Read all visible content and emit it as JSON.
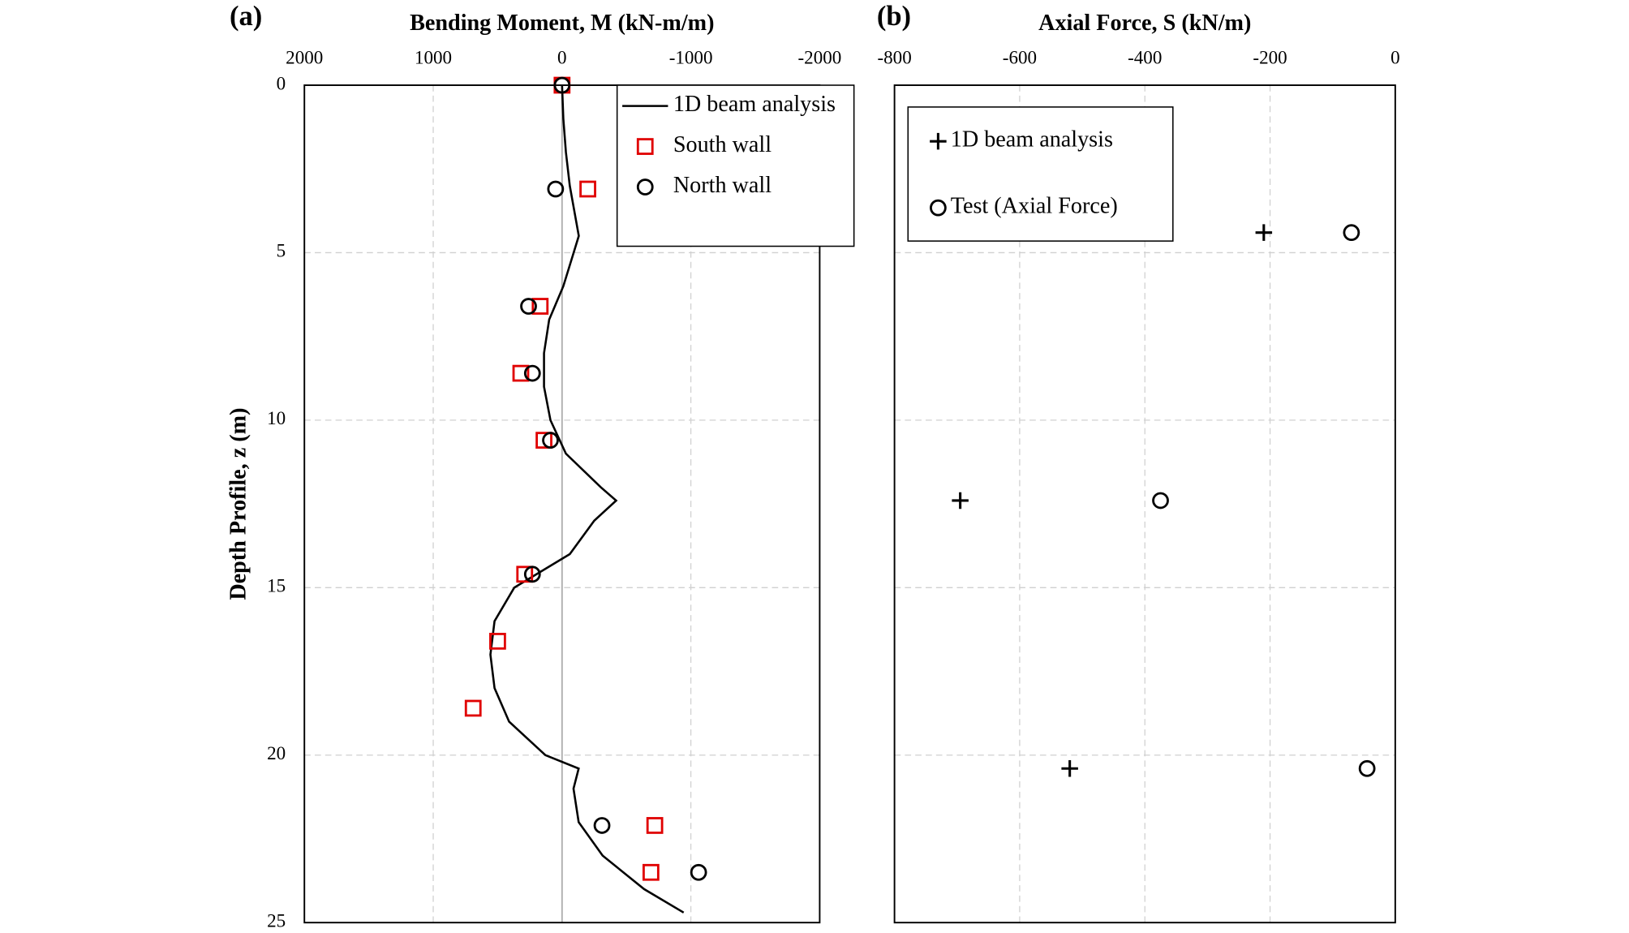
{
  "chart_data": [
    {
      "type": "scatter",
      "panel_label": "(a)",
      "title": "Bending Moment, M (kN-m/m)",
      "y_label": "Depth Profile, z (m)",
      "xlim": [
        2000,
        -2000
      ],
      "xticks": [
        2000,
        1000,
        0,
        -1000,
        -2000
      ],
      "ylim": [
        0,
        25
      ],
      "yticks": [
        0,
        5,
        10,
        15,
        20,
        25
      ],
      "y_inverted": true,
      "grid": true,
      "zero_line": true,
      "legend": "upper right",
      "ytick_labels": true,
      "series": [
        {
          "name": "1D beam analysis",
          "marker": "line",
          "color": "#000000",
          "x": [
            0,
            -10,
            -30,
            -60,
            -130,
            -90,
            -10,
            100,
            140,
            140,
            90,
            -30,
            -300,
            -420,
            -250,
            -60,
            371,
            524,
            556,
            524,
            411,
            129,
            -129,
            -89,
            -129,
            -315,
            -637,
            -944
          ],
          "y": [
            0,
            1,
            2,
            3,
            4.5,
            5,
            6,
            7,
            8,
            9,
            10,
            11,
            12,
            12.4,
            13,
            14,
            15,
            16,
            17,
            18,
            19,
            20,
            20.4,
            21,
            22,
            23,
            24,
            24.7
          ]
        },
        {
          "name": "South wall",
          "marker": "square",
          "color": "#e00000",
          "x": [
            0,
            -200,
            170,
            320,
            140,
            290,
            500,
            690,
            -720,
            -690
          ],
          "y": [
            0,
            3.1,
            6.6,
            8.6,
            10.6,
            14.6,
            16.6,
            18.6,
            22.1,
            23.5
          ]
        },
        {
          "name": "North wall",
          "marker": "circle",
          "color": "#000000",
          "x": [
            0,
            50,
            260,
            230,
            90,
            230,
            -310,
            -1060
          ],
          "y": [
            0,
            3.1,
            6.6,
            8.6,
            10.6,
            14.6,
            22.1,
            23.5
          ]
        }
      ]
    },
    {
      "type": "scatter",
      "panel_label": "(b)",
      "title": "Axial Force, S (kN/m)",
      "xlim": [
        -800,
        0
      ],
      "xticks": [
        -800,
        -600,
        -400,
        -200,
        0
      ],
      "ylim": [
        0,
        25
      ],
      "yticks": [
        0,
        5,
        10,
        15,
        20,
        25
      ],
      "y_inverted": true,
      "grid": true,
      "zero_line": false,
      "legend": "upper left",
      "ytick_labels": false,
      "series": [
        {
          "name": "1D beam analysis",
          "marker": "plus",
          "color": "#000000",
          "x": [
            -210,
            -695,
            -520
          ],
          "y": [
            4.4,
            12.4,
            20.4
          ]
        },
        {
          "name": "Test (Axial Force)",
          "marker": "circle",
          "color": "#000000",
          "x": [
            -70,
            -375,
            -45
          ],
          "y": [
            4.4,
            12.4,
            20.4
          ]
        }
      ]
    }
  ]
}
